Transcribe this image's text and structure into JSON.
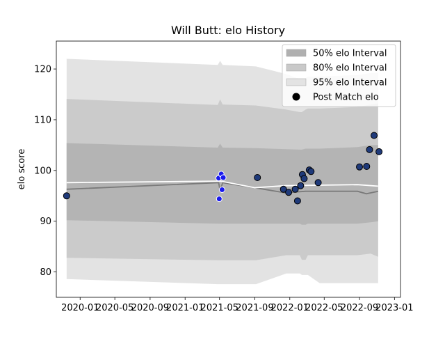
{
  "chart_data": {
    "type": "scatter",
    "title": "Will Butt: elo History",
    "xlabel": "",
    "ylabel": "elo score",
    "xlim": [
      "2019-10-10",
      "2023-01-22"
    ],
    "ylim": [
      75,
      125.5
    ],
    "grid": false,
    "legend_position": "upper right",
    "x_ticks": [
      "2020-01",
      "2020-05",
      "2020-09",
      "2021-01",
      "2021-05",
      "2021-09",
      "2022-01",
      "2022-05",
      "2022-09",
      "2023-01"
    ],
    "y_ticks": [
      80,
      90,
      100,
      110,
      120
    ],
    "legend": [
      {
        "label": "50% elo Interval",
        "kind": "patch",
        "color": "#b0b0b0"
      },
      {
        "label": "80% elo Interval",
        "kind": "patch",
        "color": "#c9c9c9"
      },
      {
        "label": "95% elo Interval",
        "kind": "patch",
        "color": "#e3e3e3"
      },
      {
        "label": "Post Match elo",
        "kind": "marker",
        "color": "#000000"
      }
    ],
    "colors": {
      "band_95": "#e3e3e3",
      "band_80": "#cbcbcb",
      "band_50": "#b4b4b4",
      "median_line": "#7a7a7a",
      "mean_line": "#ffffff",
      "point_dark": "#1f3a7a",
      "point_blue": "#1a1aee",
      "point_edge_dark": "#000000",
      "point_edge_light": "#ffffff"
    },
    "bands": [
      {
        "date": "2019-11-15",
        "lo95": 78.6,
        "lo80": 82.8,
        "lo50": 90.2,
        "hi50": 105.4,
        "hi80": 114.1,
        "hi95": 122.0
      },
      {
        "date": "2021-04-25",
        "lo95": 77.6,
        "lo80": 82.3,
        "lo50": 89.5,
        "hi50": 104.5,
        "hi80": 112.9,
        "hi95": 120.8
      },
      {
        "date": "2021-05-03",
        "lo95": 77.6,
        "lo80": 82.3,
        "lo50": 89.5,
        "hi50": 105.3,
        "hi80": 114.0,
        "hi95": 121.6
      },
      {
        "date": "2021-05-12",
        "lo95": 77.6,
        "lo80": 82.3,
        "lo50": 89.5,
        "hi50": 104.5,
        "hi80": 113.0,
        "hi95": 120.8
      },
      {
        "date": "2021-09-05",
        "lo95": 77.6,
        "lo80": 82.3,
        "lo50": 89.5,
        "hi50": 104.4,
        "hi80": 112.8,
        "hi95": 120.5
      },
      {
        "date": "2021-12-20",
        "lo95": 79.7,
        "lo80": 83.3,
        "lo50": 89.5,
        "hi50": 104.2,
        "hi80": 112.0,
        "hi95": 119.0
      },
      {
        "date": "2022-02-05",
        "lo95": 79.7,
        "lo80": 83.3,
        "lo50": 89.5,
        "hi50": 104.1,
        "hi80": 111.5,
        "hi95": 118.0
      },
      {
        "date": "2022-02-12",
        "lo95": 79.4,
        "lo80": 82.4,
        "lo50": 89.3,
        "hi50": 104.1,
        "hi80": 111.5,
        "hi95": 118.0
      },
      {
        "date": "2022-02-25",
        "lo95": 79.4,
        "lo80": 82.4,
        "lo50": 89.3,
        "hi50": 104.3,
        "hi80": 112.0,
        "hi95": 118.2
      },
      {
        "date": "2022-03-05",
        "lo95": 79.4,
        "lo80": 83.3,
        "lo50": 89.5,
        "hi50": 104.3,
        "hi80": 112.2,
        "hi95": 118.5
      },
      {
        "date": "2022-04-15",
        "lo95": 77.8,
        "lo80": 83.3,
        "lo50": 89.5,
        "hi50": 104.3,
        "hi80": 112.2,
        "hi95": 118.5
      },
      {
        "date": "2022-08-25",
        "lo95": 77.8,
        "lo80": 83.3,
        "lo50": 89.5,
        "hi50": 104.6,
        "hi80": 112.5,
        "hi95": 118.8
      },
      {
        "date": "2022-10-10",
        "lo95": 77.8,
        "lo80": 83.6,
        "lo50": 89.8,
        "hi50": 105.0,
        "hi80": 113.0,
        "hi95": 119.2
      },
      {
        "date": "2022-11-05",
        "lo95": 77.8,
        "lo80": 83.0,
        "lo50": 90.0,
        "hi50": 105.0,
        "hi80": 113.2,
        "hi95": 119.2
      }
    ],
    "median_line": [
      {
        "date": "2019-11-15",
        "value": 96.3
      },
      {
        "date": "2021-04-28",
        "value": 97.6
      },
      {
        "date": "2021-05-03",
        "value": 96.0
      },
      {
        "date": "2021-05-12",
        "value": 97.6
      },
      {
        "date": "2021-09-01",
        "value": 96.6
      },
      {
        "date": "2021-12-15",
        "value": 95.6
      },
      {
        "date": "2022-02-25",
        "value": 95.9
      },
      {
        "date": "2022-08-25",
        "value": 95.9
      },
      {
        "date": "2022-09-25",
        "value": 95.4
      },
      {
        "date": "2022-11-05",
        "value": 95.9
      }
    ],
    "mean_line": [
      {
        "date": "2019-11-15",
        "value": 97.6
      },
      {
        "date": "2021-05-05",
        "value": 97.9
      },
      {
        "date": "2021-09-01",
        "value": 96.6
      },
      {
        "date": "2021-12-15",
        "value": 97.0
      },
      {
        "date": "2022-08-25",
        "value": 97.2
      },
      {
        "date": "2022-11-05",
        "value": 96.9
      }
    ],
    "points": [
      {
        "date": "2019-11-15",
        "value": 95.0,
        "style": "dark"
      },
      {
        "date": "2021-04-28",
        "value": 98.5,
        "style": "blue"
      },
      {
        "date": "2021-04-30",
        "value": 94.4,
        "style": "blue"
      },
      {
        "date": "2021-05-07",
        "value": 99.3,
        "style": "blue"
      },
      {
        "date": "2021-05-10",
        "value": 96.2,
        "style": "blue"
      },
      {
        "date": "2021-05-14",
        "value": 98.6,
        "style": "blue"
      },
      {
        "date": "2021-09-10",
        "value": 98.6,
        "style": "dark"
      },
      {
        "date": "2021-12-10",
        "value": 96.3,
        "style": "dark"
      },
      {
        "date": "2021-12-28",
        "value": 95.7,
        "style": "dark"
      },
      {
        "date": "2022-01-20",
        "value": 96.3,
        "style": "dark"
      },
      {
        "date": "2022-01-28",
        "value": 94.0,
        "style": "dark"
      },
      {
        "date": "2022-02-08",
        "value": 97.0,
        "style": "dark"
      },
      {
        "date": "2022-02-14",
        "value": 99.2,
        "style": "dark"
      },
      {
        "date": "2022-02-20",
        "value": 98.4,
        "style": "dark"
      },
      {
        "date": "2022-03-10",
        "value": 100.1,
        "style": "dark"
      },
      {
        "date": "2022-03-16",
        "value": 99.8,
        "style": "dark"
      },
      {
        "date": "2022-04-10",
        "value": 97.6,
        "style": "dark"
      },
      {
        "date": "2022-09-01",
        "value": 100.7,
        "style": "dark"
      },
      {
        "date": "2022-09-26",
        "value": 100.8,
        "style": "dark"
      },
      {
        "date": "2022-10-06",
        "value": 104.1,
        "style": "dark"
      },
      {
        "date": "2022-10-22",
        "value": 106.9,
        "style": "dark"
      },
      {
        "date": "2022-11-08",
        "value": 103.7,
        "style": "dark"
      }
    ]
  }
}
